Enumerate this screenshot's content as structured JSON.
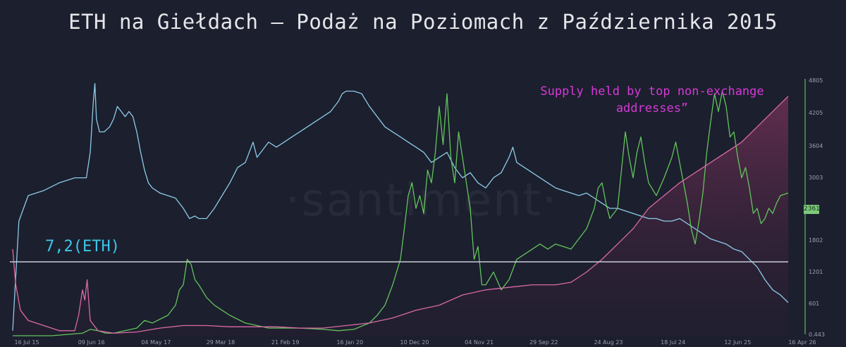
{
  "chart_data": {
    "type": "line",
    "title": "ETH na Giełdach — Podaż na Poziomach z Października 2015",
    "watermark": "·santiment·",
    "annotation": "Supply held by top non-exchange addresses”",
    "threshold_label": "7,2(ETH)",
    "x_ticks": [
      "16 Jul 15",
      "09 Jun 16",
      "04 May 17",
      "29 Mar 18",
      "21 Feb 19",
      "16 Jan 20",
      "10 Dec 20",
      "04 Nov 21",
      "29 Sep 22",
      "24 Aug 23",
      "18 Jul 24",
      "12 Jun 25",
      "16 Apr 26"
    ],
    "right_axis": {
      "ticks": [
        "0.443",
        "601",
        "1201",
        "1802",
        "2361",
        "3003",
        "3604",
        "4205",
        "4805"
      ],
      "ylim": [
        0.443,
        4805
      ],
      "current_value": "2361",
      "color": "#59c15a"
    },
    "grid": false,
    "series": [
      {
        "key": "exchange_supply",
        "color": "#8ccbe8",
        "points": [
          [
            0,
            0.02
          ],
          [
            0.008,
            0.45
          ],
          [
            0.02,
            0.55
          ],
          [
            0.04,
            0.57
          ],
          [
            0.06,
            0.6
          ],
          [
            0.08,
            0.62
          ],
          [
            0.095,
            0.62
          ],
          [
            0.1,
            0.72
          ],
          [
            0.104,
            0.92
          ],
          [
            0.106,
            0.99
          ],
          [
            0.108,
            0.85
          ],
          [
            0.112,
            0.8
          ],
          [
            0.118,
            0.8
          ],
          [
            0.125,
            0.82
          ],
          [
            0.13,
            0.85
          ],
          [
            0.135,
            0.9
          ],
          [
            0.14,
            0.88
          ],
          [
            0.145,
            0.86
          ],
          [
            0.15,
            0.88
          ],
          [
            0.155,
            0.86
          ],
          [
            0.16,
            0.8
          ],
          [
            0.165,
            0.72
          ],
          [
            0.17,
            0.65
          ],
          [
            0.175,
            0.6
          ],
          [
            0.18,
            0.58
          ],
          [
            0.19,
            0.56
          ],
          [
            0.2,
            0.55
          ],
          [
            0.21,
            0.54
          ],
          [
            0.22,
            0.5
          ],
          [
            0.228,
            0.46
          ],
          [
            0.235,
            0.47
          ],
          [
            0.24,
            0.46
          ],
          [
            0.25,
            0.46
          ],
          [
            0.26,
            0.5
          ],
          [
            0.27,
            0.55
          ],
          [
            0.28,
            0.6
          ],
          [
            0.29,
            0.66
          ],
          [
            0.3,
            0.68
          ],
          [
            0.305,
            0.72
          ],
          [
            0.31,
            0.76
          ],
          [
            0.315,
            0.7
          ],
          [
            0.32,
            0.72
          ],
          [
            0.33,
            0.76
          ],
          [
            0.34,
            0.74
          ],
          [
            0.35,
            0.76
          ],
          [
            0.36,
            0.78
          ],
          [
            0.37,
            0.8
          ],
          [
            0.38,
            0.82
          ],
          [
            0.39,
            0.84
          ],
          [
            0.4,
            0.86
          ],
          [
            0.41,
            0.88
          ],
          [
            0.42,
            0.92
          ],
          [
            0.425,
            0.95
          ],
          [
            0.43,
            0.96
          ],
          [
            0.44,
            0.96
          ],
          [
            0.45,
            0.95
          ],
          [
            0.46,
            0.9
          ],
          [
            0.47,
            0.86
          ],
          [
            0.48,
            0.82
          ],
          [
            0.49,
            0.8
          ],
          [
            0.5,
            0.78
          ],
          [
            0.51,
            0.76
          ],
          [
            0.52,
            0.74
          ],
          [
            0.53,
            0.72
          ],
          [
            0.54,
            0.68
          ],
          [
            0.55,
            0.7
          ],
          [
            0.56,
            0.72
          ],
          [
            0.57,
            0.66
          ],
          [
            0.58,
            0.62
          ],
          [
            0.59,
            0.64
          ],
          [
            0.6,
            0.6
          ],
          [
            0.61,
            0.58
          ],
          [
            0.62,
            0.62
          ],
          [
            0.63,
            0.64
          ],
          [
            0.64,
            0.7
          ],
          [
            0.645,
            0.74
          ],
          [
            0.65,
            0.68
          ],
          [
            0.66,
            0.66
          ],
          [
            0.67,
            0.64
          ],
          [
            0.68,
            0.62
          ],
          [
            0.69,
            0.6
          ],
          [
            0.7,
            0.58
          ],
          [
            0.71,
            0.57
          ],
          [
            0.72,
            0.56
          ],
          [
            0.73,
            0.55
          ],
          [
            0.74,
            0.56
          ],
          [
            0.75,
            0.54
          ],
          [
            0.76,
            0.52
          ],
          [
            0.77,
            0.5
          ],
          [
            0.78,
            0.5
          ],
          [
            0.79,
            0.49
          ],
          [
            0.8,
            0.48
          ],
          [
            0.81,
            0.47
          ],
          [
            0.82,
            0.46
          ],
          [
            0.83,
            0.46
          ],
          [
            0.84,
            0.45
          ],
          [
            0.85,
            0.45
          ],
          [
            0.86,
            0.46
          ],
          [
            0.87,
            0.44
          ],
          [
            0.88,
            0.42
          ],
          [
            0.89,
            0.4
          ],
          [
            0.9,
            0.38
          ],
          [
            0.91,
            0.37
          ],
          [
            0.92,
            0.36
          ],
          [
            0.93,
            0.34
          ],
          [
            0.94,
            0.33
          ],
          [
            0.95,
            0.3
          ],
          [
            0.96,
            0.27
          ],
          [
            0.97,
            0.22
          ],
          [
            0.98,
            0.18
          ],
          [
            0.99,
            0.16
          ],
          [
            1,
            0.13
          ]
        ]
      },
      {
        "key": "eth_price",
        "color": "#62c45c",
        "points": [
          [
            0,
            0.0
          ],
          [
            0.05,
            0.0
          ],
          [
            0.09,
            0.01
          ],
          [
            0.1,
            0.025
          ],
          [
            0.11,
            0.02
          ],
          [
            0.12,
            0.01
          ],
          [
            0.13,
            0.01
          ],
          [
            0.16,
            0.03
          ],
          [
            0.17,
            0.06
          ],
          [
            0.18,
            0.05
          ],
          [
            0.2,
            0.08
          ],
          [
            0.21,
            0.12
          ],
          [
            0.215,
            0.18
          ],
          [
            0.22,
            0.2
          ],
          [
            0.225,
            0.3
          ],
          [
            0.23,
            0.28
          ],
          [
            0.235,
            0.22
          ],
          [
            0.24,
            0.2
          ],
          [
            0.25,
            0.15
          ],
          [
            0.26,
            0.12
          ],
          [
            0.27,
            0.1
          ],
          [
            0.28,
            0.08
          ],
          [
            0.3,
            0.05
          ],
          [
            0.33,
            0.03
          ],
          [
            0.37,
            0.03
          ],
          [
            0.4,
            0.025
          ],
          [
            0.42,
            0.02
          ],
          [
            0.44,
            0.025
          ],
          [
            0.46,
            0.05
          ],
          [
            0.47,
            0.08
          ],
          [
            0.48,
            0.12
          ],
          [
            0.49,
            0.2
          ],
          [
            0.5,
            0.3
          ],
          [
            0.505,
            0.42
          ],
          [
            0.51,
            0.55
          ],
          [
            0.515,
            0.6
          ],
          [
            0.52,
            0.5
          ],
          [
            0.525,
            0.55
          ],
          [
            0.53,
            0.48
          ],
          [
            0.535,
            0.65
          ],
          [
            0.54,
            0.6
          ],
          [
            0.545,
            0.72
          ],
          [
            0.55,
            0.9
          ],
          [
            0.555,
            0.75
          ],
          [
            0.56,
            0.95
          ],
          [
            0.565,
            0.7
          ],
          [
            0.57,
            0.6
          ],
          [
            0.575,
            0.8
          ],
          [
            0.58,
            0.7
          ],
          [
            0.585,
            0.6
          ],
          [
            0.59,
            0.5
          ],
          [
            0.595,
            0.3
          ],
          [
            0.6,
            0.35
          ],
          [
            0.605,
            0.2
          ],
          [
            0.61,
            0.2
          ],
          [
            0.62,
            0.25
          ],
          [
            0.63,
            0.18
          ],
          [
            0.64,
            0.22
          ],
          [
            0.65,
            0.3
          ],
          [
            0.66,
            0.32
          ],
          [
            0.67,
            0.34
          ],
          [
            0.68,
            0.36
          ],
          [
            0.69,
            0.34
          ],
          [
            0.7,
            0.36
          ],
          [
            0.71,
            0.35
          ],
          [
            0.72,
            0.34
          ],
          [
            0.73,
            0.38
          ],
          [
            0.74,
            0.42
          ],
          [
            0.75,
            0.5
          ],
          [
            0.755,
            0.58
          ],
          [
            0.76,
            0.6
          ],
          [
            0.765,
            0.52
          ],
          [
            0.77,
            0.46
          ],
          [
            0.78,
            0.5
          ],
          [
            0.785,
            0.65
          ],
          [
            0.79,
            0.8
          ],
          [
            0.795,
            0.7
          ],
          [
            0.8,
            0.62
          ],
          [
            0.805,
            0.72
          ],
          [
            0.81,
            0.78
          ],
          [
            0.815,
            0.68
          ],
          [
            0.82,
            0.6
          ],
          [
            0.83,
            0.55
          ],
          [
            0.84,
            0.62
          ],
          [
            0.85,
            0.7
          ],
          [
            0.855,
            0.76
          ],
          [
            0.86,
            0.68
          ],
          [
            0.865,
            0.6
          ],
          [
            0.87,
            0.52
          ],
          [
            0.875,
            0.42
          ],
          [
            0.88,
            0.36
          ],
          [
            0.885,
            0.45
          ],
          [
            0.89,
            0.56
          ],
          [
            0.895,
            0.72
          ],
          [
            0.9,
            0.84
          ],
          [
            0.905,
            0.95
          ],
          [
            0.91,
            0.88
          ],
          [
            0.915,
            0.96
          ],
          [
            0.92,
            0.9
          ],
          [
            0.925,
            0.78
          ],
          [
            0.93,
            0.8
          ],
          [
            0.935,
            0.7
          ],
          [
            0.94,
            0.62
          ],
          [
            0.945,
            0.66
          ],
          [
            0.95,
            0.58
          ],
          [
            0.955,
            0.48
          ],
          [
            0.96,
            0.5
          ],
          [
            0.965,
            0.44
          ],
          [
            0.97,
            0.46
          ],
          [
            0.975,
            0.5
          ],
          [
            0.98,
            0.48
          ],
          [
            0.985,
            0.52
          ],
          [
            0.99,
            0.55
          ],
          [
            1,
            0.56
          ]
        ]
      },
      {
        "key": "top_non_exchange_supply",
        "color": "#d86aa6",
        "points": [
          [
            0,
            0.34
          ],
          [
            0.004,
            0.2
          ],
          [
            0.01,
            0.1
          ],
          [
            0.02,
            0.06
          ],
          [
            0.04,
            0.04
          ],
          [
            0.06,
            0.02
          ],
          [
            0.08,
            0.02
          ],
          [
            0.085,
            0.08
          ],
          [
            0.09,
            0.18
          ],
          [
            0.093,
            0.14
          ],
          [
            0.096,
            0.22
          ],
          [
            0.1,
            0.06
          ],
          [
            0.11,
            0.02
          ],
          [
            0.13,
            0.01
          ],
          [
            0.16,
            0.015
          ],
          [
            0.19,
            0.03
          ],
          [
            0.22,
            0.04
          ],
          [
            0.25,
            0.04
          ],
          [
            0.28,
            0.035
          ],
          [
            0.31,
            0.035
          ],
          [
            0.34,
            0.035
          ],
          [
            0.37,
            0.03
          ],
          [
            0.4,
            0.03
          ],
          [
            0.43,
            0.04
          ],
          [
            0.46,
            0.05
          ],
          [
            0.49,
            0.07
          ],
          [
            0.52,
            0.1
          ],
          [
            0.55,
            0.12
          ],
          [
            0.58,
            0.16
          ],
          [
            0.61,
            0.18
          ],
          [
            0.64,
            0.19
          ],
          [
            0.67,
            0.2
          ],
          [
            0.7,
            0.2
          ],
          [
            0.72,
            0.21
          ],
          [
            0.74,
            0.25
          ],
          [
            0.76,
            0.3
          ],
          [
            0.78,
            0.36
          ],
          [
            0.8,
            0.42
          ],
          [
            0.82,
            0.5
          ],
          [
            0.84,
            0.55
          ],
          [
            0.86,
            0.6
          ],
          [
            0.88,
            0.64
          ],
          [
            0.9,
            0.68
          ],
          [
            0.92,
            0.72
          ],
          [
            0.94,
            0.76
          ],
          [
            0.96,
            0.82
          ],
          [
            0.98,
            0.88
          ],
          [
            1,
            0.94
          ]
        ]
      }
    ],
    "threshold_level": 0.42
  }
}
